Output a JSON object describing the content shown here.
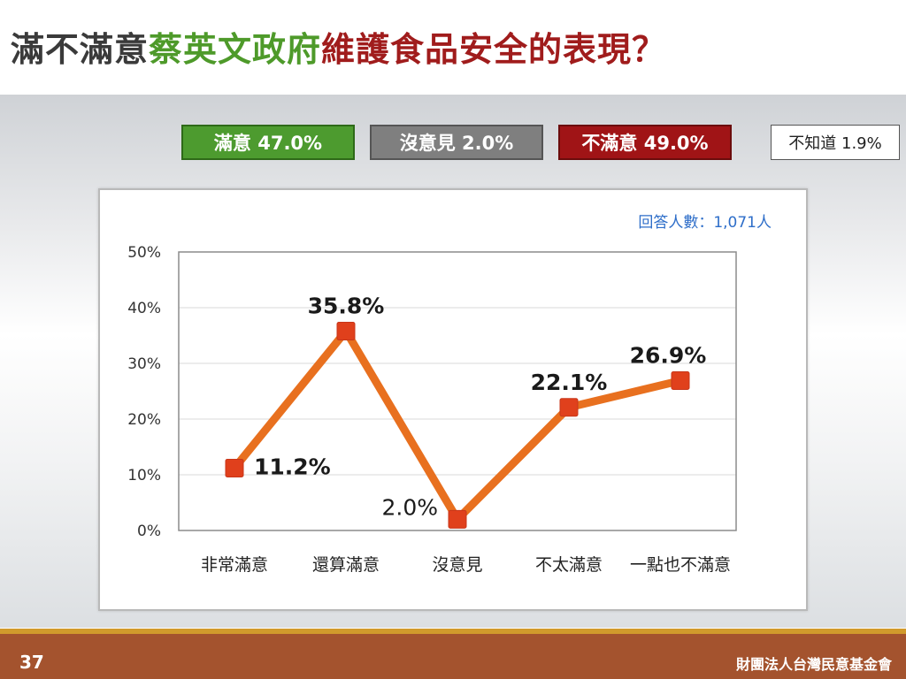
{
  "title": {
    "part1": "滿不滿意",
    "part2": "蔡英文政府",
    "part3": "維護食品安全的表現？"
  },
  "summary": {
    "satisfied": "滿意 47.0%",
    "no_opinion": "沒意見 2.0%",
    "dissatisfied": "不滿意 49.0%",
    "dont_know": "不知道 1.9%"
  },
  "colors": {
    "title_green": "#4e9a2a",
    "title_red": "#a01c1c",
    "line": "#e8701f",
    "marker": "#e0401c",
    "respondent_text": "#2e6ec9"
  },
  "chart_data": {
    "type": "line",
    "categories": [
      "非常滿意",
      "還算滿意",
      "沒意見",
      "不太滿意",
      "一點也不滿意"
    ],
    "values": [
      11.2,
      35.8,
      2.0,
      22.1,
      26.9
    ],
    "data_labels": [
      "11.2%",
      "35.8%",
      "2.0%",
      "22.1%",
      "26.9%"
    ],
    "y_ticks": [
      "0%",
      "10%",
      "20%",
      "30%",
      "40%",
      "50%"
    ],
    "ylim": [
      0,
      50
    ],
    "annotation": "回答人數：1,071人",
    "grid": true
  },
  "footer": {
    "page": "37",
    "org": "財團法人台灣民意基金會"
  }
}
